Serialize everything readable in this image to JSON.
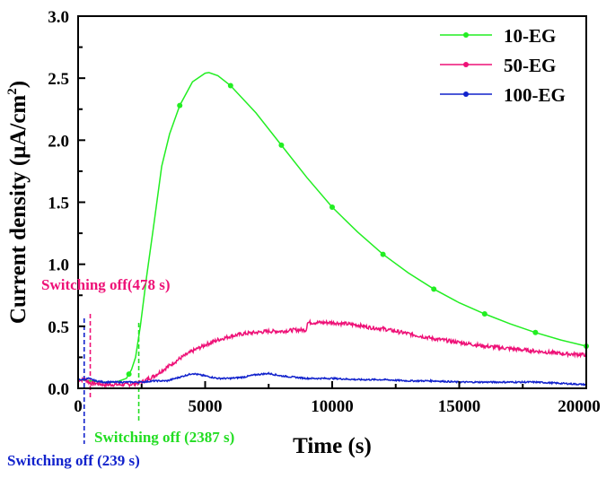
{
  "chart_data": {
    "type": "line",
    "title": "",
    "xlabel": "Time (s)",
    "ylabel": "Current density (μA/cm²)",
    "ylabel_main": "Current density (μA/cm",
    "ylabel_sup": "2",
    "ylabel_close": ")",
    "xlim": [
      0,
      20000
    ],
    "ylim": [
      0,
      3.0
    ],
    "xticks": [
      0,
      5000,
      10000,
      15000,
      20000
    ],
    "xtick_labels": [
      "0",
      "5000",
      "10000",
      "15000",
      "20000"
    ],
    "xminor": [
      2500,
      7500,
      12500,
      17500
    ],
    "yticks": [
      0.0,
      0.5,
      1.0,
      1.5,
      2.0,
      2.5,
      3.0
    ],
    "ytick_labels": [
      "0.0",
      "0.5",
      "1.0",
      "1.5",
      "2.0",
      "2.5",
      "3.0"
    ],
    "yminor": [
      0.25,
      0.75,
      1.25,
      1.75,
      2.25,
      2.75
    ],
    "grid": false,
    "legend_position": "top-right",
    "series": [
      {
        "name": "10-EG",
        "color": "#22ee22",
        "x": [
          0,
          500,
          1000,
          1500,
          1900,
          2100,
          2260,
          2450,
          2690,
          3000,
          3290,
          3600,
          4000,
          4500,
          5000,
          5150,
          5500,
          6000,
          7000,
          8000,
          9000,
          10000,
          11000,
          12000,
          13000,
          14000,
          15000,
          16000,
          17000,
          18000,
          19000,
          20000
        ],
        "y": [
          0.07,
          0.06,
          0.05,
          0.05,
          0.08,
          0.15,
          0.25,
          0.5,
          0.89,
          1.35,
          1.79,
          2.05,
          2.28,
          2.47,
          2.54,
          2.545,
          2.52,
          2.44,
          2.22,
          1.96,
          1.7,
          1.46,
          1.26,
          1.08,
          0.93,
          0.8,
          0.69,
          0.6,
          0.52,
          0.45,
          0.39,
          0.34
        ],
        "markers_x": [
          2000,
          4000,
          6000,
          8000,
          10000,
          12000,
          14000,
          16000,
          18000,
          20000
        ]
      },
      {
        "name": "50-EG",
        "color": "#ee1177",
        "x": [
          0,
          300,
          478,
          700,
          1000,
          1500,
          2000,
          2500,
          3000,
          3500,
          4000,
          4500,
          5000,
          5500,
          6000,
          6500,
          7000,
          7500,
          8000,
          8500,
          8990,
          9010,
          9500,
          10000,
          10500,
          11000,
          11500,
          12000,
          12500,
          13000,
          13500,
          14000,
          15000,
          16000,
          17000,
          18000,
          19000,
          20000
        ],
        "y": [
          0.07,
          0.07,
          0.04,
          0.04,
          0.03,
          0.03,
          0.03,
          0.05,
          0.1,
          0.17,
          0.24,
          0.3,
          0.35,
          0.39,
          0.42,
          0.44,
          0.45,
          0.46,
          0.46,
          0.47,
          0.47,
          0.53,
          0.53,
          0.53,
          0.52,
          0.51,
          0.49,
          0.48,
          0.46,
          0.44,
          0.42,
          0.4,
          0.37,
          0.34,
          0.32,
          0.3,
          0.28,
          0.27
        ],
        "markers_x": []
      },
      {
        "name": "100-EG",
        "color": "#1122cc",
        "x": [
          0,
          239,
          400,
          700,
          1000,
          1500,
          2000,
          2500,
          3000,
          3500,
          4000,
          4500,
          5000,
          5500,
          6000,
          6500,
          7000,
          7500,
          8000,
          8500,
          9000,
          10000,
          11000,
          12000,
          13000,
          14000,
          15000,
          16000,
          17000,
          18000,
          19000,
          20000
        ],
        "y": [
          0.07,
          0.07,
          0.08,
          0.06,
          0.05,
          0.05,
          0.05,
          0.05,
          0.06,
          0.06,
          0.09,
          0.12,
          0.1,
          0.08,
          0.08,
          0.09,
          0.11,
          0.12,
          0.1,
          0.09,
          0.08,
          0.08,
          0.07,
          0.07,
          0.06,
          0.06,
          0.05,
          0.05,
          0.05,
          0.05,
          0.04,
          0.03
        ],
        "markers_x": []
      }
    ],
    "annotations": [
      {
        "text": "Switching off(478 s)",
        "x": 478,
        "color": "#ee1177"
      },
      {
        "text": "Switching off (2387 s)",
        "x": 2387,
        "color": "#22dd22"
      },
      {
        "text": "Switching off (239 s)",
        "x": 239,
        "color": "#1122cc"
      }
    ]
  }
}
